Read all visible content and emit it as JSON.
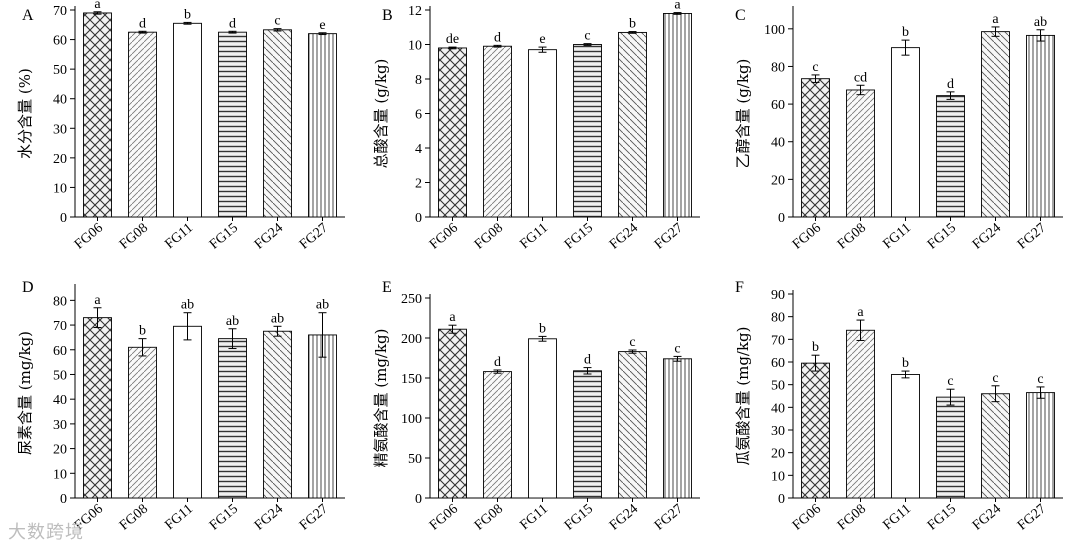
{
  "chart_data": [
    {
      "panel": "A",
      "type": "bar",
      "categories": [
        "FG06",
        "FG08",
        "FG11",
        "FG15",
        "FG24",
        "FG27"
      ],
      "values": [
        69,
        62.5,
        65.5,
        62.5,
        63.3,
        62
      ],
      "errors": [
        0.4,
        0.3,
        0.3,
        0.3,
        0.4,
        0.3
      ],
      "letters": [
        "a",
        "d",
        "b",
        "d",
        "c",
        "e"
      ],
      "ylabel": "水分含量 (%)",
      "ylim": [
        0,
        70
      ],
      "yticks": [
        "0",
        "10",
        "20",
        "30",
        "40",
        "50",
        "60",
        "70"
      ]
    },
    {
      "panel": "B",
      "type": "bar",
      "categories": [
        "FG06",
        "FG08",
        "FG11",
        "FG15",
        "FG24",
        "FG27"
      ],
      "values": [
        9.8,
        9.9,
        9.7,
        10.0,
        10.7,
        11.8
      ],
      "errors": [
        0.05,
        0.05,
        0.15,
        0.05,
        0.05,
        0.05
      ],
      "letters": [
        "de",
        "d",
        "e",
        "c",
        "b",
        "a"
      ],
      "ylabel": "总酸含量 (g/kg)",
      "ylim": [
        0,
        12
      ],
      "yticks": [
        "0",
        "2",
        "4",
        "6",
        "8",
        "10",
        "12"
      ]
    },
    {
      "panel": "C",
      "type": "bar",
      "categories": [
        "FG06",
        "FG08",
        "FG11",
        "FG15",
        "FG24",
        "FG27"
      ],
      "values": [
        73.5,
        67.5,
        90,
        64.5,
        98.5,
        96.5
      ],
      "errors": [
        2,
        2.5,
        4,
        2,
        2.5,
        3
      ],
      "letters": [
        "c",
        "cd",
        "b",
        "d",
        "a",
        "ab"
      ],
      "ylabel": "乙醇含量 (g/kg)",
      "ylim": [
        0,
        110
      ],
      "yticks": [
        "0",
        "20",
        "40",
        "60",
        "80",
        "100"
      ]
    },
    {
      "panel": "D",
      "type": "bar",
      "categories": [
        "FG06",
        "FG08",
        "FG11",
        "FG15",
        "FG24",
        "FG27"
      ],
      "values": [
        73,
        61,
        69.5,
        64.5,
        67.5,
        66
      ],
      "errors": [
        4,
        3.5,
        5.5,
        4,
        2,
        9
      ],
      "letters": [
        "a",
        "b",
        "ab",
        "ab",
        "ab",
        "ab"
      ],
      "ylabel": "尿素含量 (mg/kg)",
      "ylim": [
        0,
        85
      ],
      "yticks": [
        "0",
        "10",
        "20",
        "30",
        "40",
        "50",
        "60",
        "70",
        "80"
      ]
    },
    {
      "panel": "E",
      "type": "bar",
      "categories": [
        "FG06",
        "FG08",
        "FG11",
        "FG15",
        "FG24",
        "FG27"
      ],
      "values": [
        211,
        158,
        199,
        159,
        183,
        174
      ],
      "errors": [
        5,
        2,
        3,
        4,
        2,
        3
      ],
      "letters": [
        "a",
        "d",
        "b",
        "d",
        "c",
        "c"
      ],
      "ylabel": "精氨酸含量 (mg/kg)",
      "ylim": [
        0,
        250
      ],
      "yticks": [
        "0",
        "50",
        "100",
        "150",
        "200",
        "250"
      ]
    },
    {
      "panel": "F",
      "type": "bar",
      "categories": [
        "FG06",
        "FG08",
        "FG11",
        "FG15",
        "FG24",
        "FG27"
      ],
      "values": [
        59.5,
        74,
        54.5,
        44.5,
        46,
        46.5
      ],
      "errors": [
        3.5,
        4.5,
        1.5,
        3.5,
        3.5,
        2.5
      ],
      "letters": [
        "b",
        "a",
        "b",
        "c",
        "c",
        "c"
      ],
      "ylabel": "瓜氨酸含量 (mg/kg)",
      "ylim": [
        0,
        90
      ],
      "yticks": [
        "0",
        "10",
        "20",
        "30",
        "40",
        "50",
        "60",
        "70",
        "80",
        "90"
      ]
    }
  ],
  "watermark": "大数跨境"
}
